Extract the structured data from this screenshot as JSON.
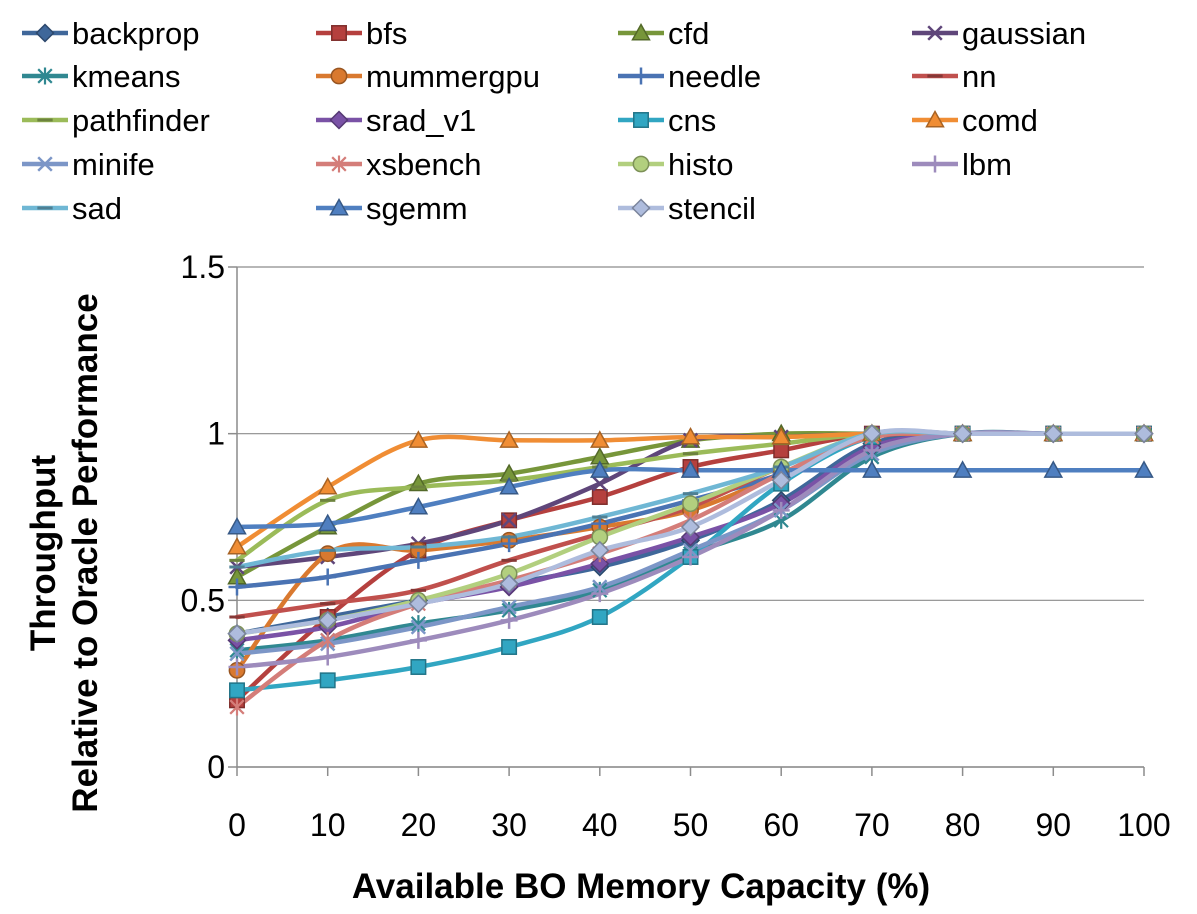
{
  "chart_data": {
    "type": "line",
    "title": "",
    "xlabel": "Available BO Memory Capacity (%)",
    "ylabel_lines": [
      "Throughput",
      "Relative to Oracle Performance"
    ],
    "x": [
      0,
      10,
      20,
      30,
      40,
      50,
      60,
      70,
      80,
      90,
      100
    ],
    "xlim": [
      0,
      100
    ],
    "ylim": [
      0,
      1.5
    ],
    "xticks": [
      "0",
      "10",
      "20",
      "30",
      "40",
      "50",
      "60",
      "70",
      "80",
      "90",
      "100"
    ],
    "yticks": [
      "0",
      "0.5",
      "1",
      "1.5"
    ],
    "grid": "horizontal",
    "legend_position": "top",
    "series": [
      {
        "name": "backprop",
        "color": "#3f679a",
        "marker": "diamond",
        "values": [
          0.4,
          0.45,
          0.5,
          0.55,
          0.6,
          0.68,
          0.8,
          0.97,
          1.0,
          1.0,
          1.0
        ]
      },
      {
        "name": "bfs",
        "color": "#b5403e",
        "marker": "square",
        "values": [
          0.2,
          0.45,
          0.65,
          0.74,
          0.81,
          0.9,
          0.95,
          1.0,
          1.0,
          1.0,
          1.0
        ]
      },
      {
        "name": "cfd",
        "color": "#77963a",
        "marker": "triangle",
        "values": [
          0.57,
          0.72,
          0.85,
          0.88,
          0.93,
          0.98,
          1.0,
          1.0,
          1.0,
          1.0,
          1.0
        ]
      },
      {
        "name": "gaussian",
        "color": "#5f467a",
        "marker": "x",
        "values": [
          0.6,
          0.63,
          0.67,
          0.74,
          0.85,
          0.98,
          0.99,
          1.0,
          1.0,
          1.0,
          1.0
        ]
      },
      {
        "name": "kmeans",
        "color": "#308891",
        "marker": "star",
        "values": [
          0.35,
          0.38,
          0.43,
          0.47,
          0.53,
          0.64,
          0.74,
          0.93,
          1.0,
          1.0,
          1.0
        ]
      },
      {
        "name": "mummergpu",
        "color": "#d9792f",
        "marker": "circle",
        "values": [
          0.29,
          0.64,
          0.65,
          0.68,
          0.72,
          0.77,
          0.88,
          1.0,
          1.0,
          1.0,
          1.0
        ]
      },
      {
        "name": "needle",
        "color": "#4a73b3",
        "marker": "plus",
        "values": [
          0.54,
          0.57,
          0.62,
          0.67,
          0.73,
          0.8,
          0.88,
          1.0,
          1.0,
          1.0,
          1.0
        ]
      },
      {
        "name": "nn",
        "color": "#c0504d",
        "marker": "dash",
        "values": [
          0.45,
          0.49,
          0.53,
          0.62,
          0.7,
          0.78,
          0.9,
          0.99,
          1.0,
          1.0,
          1.0
        ]
      },
      {
        "name": "pathfinder",
        "color": "#9bbb59",
        "marker": "dash",
        "values": [
          0.62,
          0.8,
          0.84,
          0.86,
          0.9,
          0.94,
          0.97,
          1.0,
          1.0,
          1.0,
          1.0
        ]
      },
      {
        "name": "srad_v1",
        "color": "#7a52a6",
        "marker": "diamond",
        "values": [
          0.38,
          0.42,
          0.49,
          0.54,
          0.61,
          0.69,
          0.79,
          0.96,
          1.0,
          1.0,
          1.0
        ]
      },
      {
        "name": "cns",
        "color": "#31a6c2",
        "marker": "square",
        "values": [
          0.23,
          0.26,
          0.3,
          0.36,
          0.45,
          0.63,
          0.85,
          0.99,
          1.0,
          1.0,
          1.0
        ]
      },
      {
        "name": "comd",
        "color": "#f08d34",
        "marker": "triangle",
        "values": [
          0.66,
          0.84,
          0.98,
          0.98,
          0.98,
          0.99,
          0.99,
          1.0,
          1.0,
          1.0,
          1.0
        ]
      },
      {
        "name": "minife",
        "color": "#7c96c7",
        "marker": "x",
        "values": [
          0.34,
          0.37,
          0.42,
          0.48,
          0.54,
          0.65,
          0.77,
          0.94,
          1.0,
          1.0,
          1.0
        ]
      },
      {
        "name": "xsbench",
        "color": "#d47d79",
        "marker": "star",
        "values": [
          0.18,
          0.38,
          0.49,
          0.56,
          0.64,
          0.74,
          0.88,
          0.99,
          1.0,
          1.0,
          1.0
        ]
      },
      {
        "name": "histo",
        "color": "#b2cf7e",
        "marker": "circle",
        "values": [
          0.4,
          0.44,
          0.5,
          0.58,
          0.69,
          0.79,
          0.9,
          1.0,
          1.0,
          1.0,
          1.0
        ]
      },
      {
        "name": "lbm",
        "color": "#9d8bbc",
        "marker": "plus",
        "values": [
          0.3,
          0.33,
          0.38,
          0.44,
          0.52,
          0.63,
          0.77,
          0.95,
          1.0,
          1.0,
          1.0
        ]
      },
      {
        "name": "sad",
        "color": "#6fb7d4",
        "marker": "dash",
        "values": [
          0.6,
          0.65,
          0.66,
          0.69,
          0.75,
          0.82,
          0.9,
          1.0,
          1.0,
          1.0,
          1.0
        ]
      },
      {
        "name": "sgemm",
        "color": "#4f7fc0",
        "marker": "triangle",
        "values": [
          0.72,
          0.73,
          0.78,
          0.84,
          0.89,
          0.89,
          0.89,
          0.89,
          0.89,
          0.89,
          0.89
        ]
      },
      {
        "name": "stencil",
        "color": "#aebcdd",
        "marker": "diamond",
        "values": [
          0.4,
          0.44,
          0.49,
          0.55,
          0.65,
          0.72,
          0.86,
          1.0,
          1.0,
          1.0,
          1.0
        ]
      }
    ]
  }
}
